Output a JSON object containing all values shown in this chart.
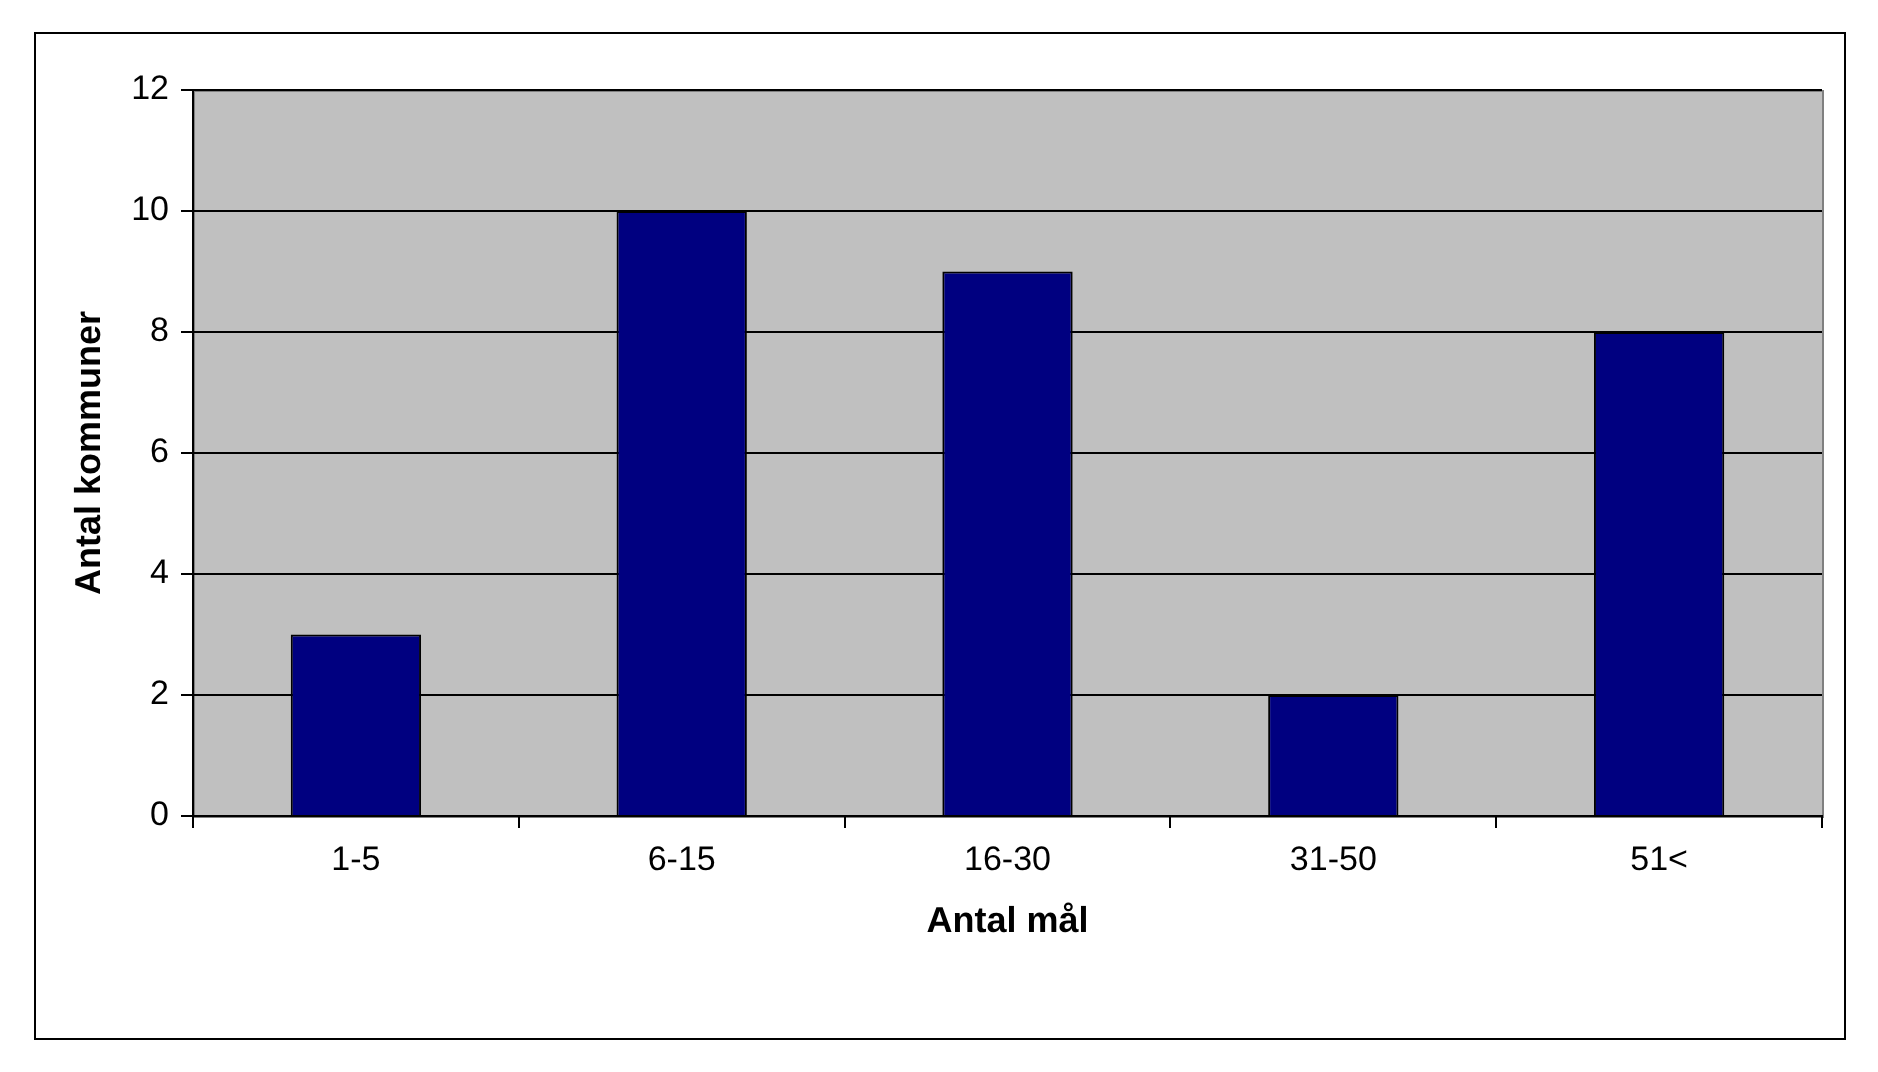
{
  "chart_data": {
    "type": "bar",
    "xlabel": "Antal mål",
    "ylabel": "Antal kommuner",
    "categories": [
      "1-5",
      "6-15",
      "16-30",
      "31-50",
      "51<"
    ],
    "values": [
      3,
      10,
      9,
      2,
      8
    ],
    "color": "#000080",
    "ylim": [
      0,
      12
    ],
    "yticks": [
      0,
      2,
      4,
      6,
      8,
      10,
      12
    ],
    "grid": "y",
    "legend": false
  }
}
